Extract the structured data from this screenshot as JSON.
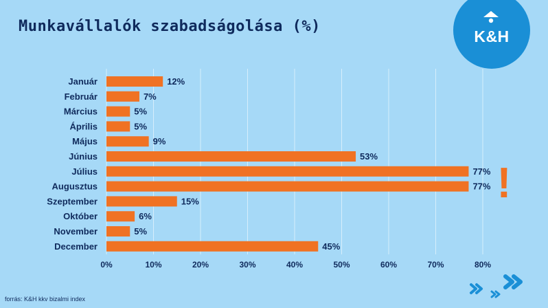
{
  "title": "Munkavállalók szabadságolása (%)",
  "logo": {
    "text": "K&H"
  },
  "source": "forrás: K&H kkv bizalmi index",
  "annotation": "!",
  "colors": {
    "background": "#a6d9f7",
    "bar": "#f07223",
    "text": "#0f2a5c",
    "logo": "#1a8fd6",
    "chevron": "#1a8fd6",
    "grid": "#ffffff"
  },
  "chart_data": {
    "type": "bar",
    "orientation": "horizontal",
    "categories": [
      "Január",
      "Február",
      "Március",
      "Április",
      "Május",
      "Június",
      "Július",
      "Augusztus",
      "Szeptember",
      "Október",
      "November",
      "December"
    ],
    "values": [
      12,
      7,
      5,
      5,
      9,
      53,
      77,
      77,
      15,
      6,
      5,
      45
    ],
    "data_labels": [
      "12%",
      "7%",
      "5%",
      "5%",
      "9%",
      "53%",
      "77%",
      "77%",
      "15%",
      "6%",
      "5%",
      "45%"
    ],
    "x_ticks": [
      0,
      10,
      20,
      30,
      40,
      50,
      60,
      70,
      80
    ],
    "x_tick_labels": [
      "0%",
      "10%",
      "20%",
      "30%",
      "40%",
      "50%",
      "60%",
      "70%",
      "80%"
    ],
    "xlim": [
      0,
      80
    ],
    "grid": true,
    "legend": false
  }
}
